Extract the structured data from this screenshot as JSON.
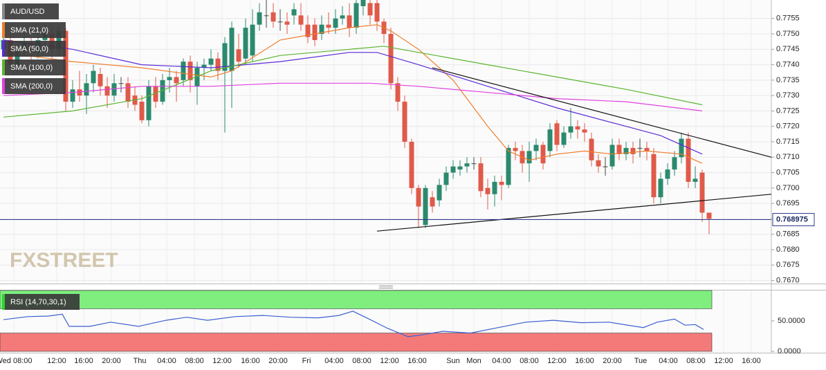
{
  "chart_data": {
    "type": "candlestick",
    "title": "AUD/USD",
    "watermark": "FXSTREET",
    "bull_color": "#2b8a6e",
    "bear_color": "#e05a4a",
    "open": [
      0.7745,
      0.7748,
      0.774,
      0.7745,
      0.7747,
      0.7744,
      0.7748,
      0.775,
      0.7745,
      0.7751,
      0.7728,
      0.7732,
      0.773,
      0.7734,
      0.7737,
      0.7733,
      0.773,
      0.7734,
      0.7734,
      0.773,
      0.7728,
      0.7722,
      0.7733,
      0.7728,
      0.7735,
      0.7736,
      0.7735,
      0.7741,
      0.7733,
      0.7739,
      0.774,
      0.7742,
      0.7738,
      0.7738,
      0.7745,
      0.7742,
      0.7743,
      0.7753,
      0.7756,
      0.7757,
      0.7754,
      0.7754,
      0.7756,
      0.7756,
      0.7753,
      0.7753,
      0.775,
      0.7753,
      0.7752,
      0.7755,
      0.7756,
      0.7752,
      0.7759,
      0.776,
      0.776,
      0.7754,
      0.775,
      0.7734,
      0.7728,
      0.7715,
      0.77,
      0.7688,
      0.7697,
      0.7696,
      0.7701,
      0.7705,
      0.7706,
      0.7707,
      0.7708,
      0.7708,
      0.77,
      0.7698,
      0.7702,
      0.7701,
      0.7713,
      0.7712,
      0.7708,
      0.7712,
      0.7714,
      0.7712,
      0.7721,
      0.7714,
      0.7718,
      0.772,
      0.7719,
      0.7716,
      0.7709,
      0.7707,
      0.7707,
      0.7714,
      0.7711,
      0.7713,
      0.7713,
      0.7713,
      0.7711,
      0.7697,
      0.7703,
      0.7706,
      0.771,
      0.7716,
      0.7702,
      0.7705,
      0.7692
    ],
    "high": [
      0.775,
      0.7751,
      0.7747,
      0.775,
      0.7749,
      0.7751,
      0.7753,
      0.7752,
      0.7753,
      0.7752,
      0.7735,
      0.7738,
      0.7737,
      0.774,
      0.7739,
      0.7736,
      0.7737,
      0.7736,
      0.7736,
      0.7733,
      0.773,
      0.7735,
      0.7736,
      0.7737,
      0.7739,
      0.7738,
      0.7742,
      0.7743,
      0.7741,
      0.7742,
      0.7745,
      0.7744,
      0.7749,
      0.7754,
      0.775,
      0.7755,
      0.7758,
      0.776,
      0.7761,
      0.776,
      0.7758,
      0.7757,
      0.776,
      0.776,
      0.7756,
      0.7755,
      0.7756,
      0.7757,
      0.7758,
      0.7759,
      0.776,
      0.7761,
      0.7761,
      0.7761,
      0.7761,
      0.7755,
      0.7752,
      0.7736,
      0.773,
      0.7716,
      0.7701,
      0.7701,
      0.7699,
      0.7703,
      0.7707,
      0.7709,
      0.7709,
      0.771,
      0.771,
      0.771,
      0.7703,
      0.7704,
      0.7704,
      0.7714,
      0.7715,
      0.7714,
      0.7715,
      0.7716,
      0.7715,
      0.7721,
      0.7722,
      0.772,
      0.7726,
      0.7722,
      0.7721,
      0.7718,
      0.7711,
      0.771,
      0.7716,
      0.7716,
      0.7715,
      0.7715,
      0.7716,
      0.7715,
      0.7713,
      0.7705,
      0.7708,
      0.7712,
      0.7718,
      0.7718,
      0.7707,
      0.7706,
      0.7692
    ],
    "low": [
      0.7743,
      0.7738,
      0.7737,
      0.7743,
      0.7741,
      0.7742,
      0.7746,
      0.7742,
      0.7743,
      0.7725,
      0.7726,
      0.7728,
      0.7724,
      0.7731,
      0.773,
      0.7726,
      0.7728,
      0.7731,
      0.7726,
      0.7725,
      0.7721,
      0.772,
      0.7726,
      0.7727,
      0.7731,
      0.7728,
      0.7733,
      0.7731,
      0.7727,
      0.7735,
      0.7738,
      0.7735,
      0.7718,
      0.7726,
      0.7739,
      0.774,
      0.7741,
      0.7751,
      0.7752,
      0.7752,
      0.7751,
      0.775,
      0.7753,
      0.7751,
      0.7747,
      0.7746,
      0.7748,
      0.775,
      0.775,
      0.7753,
      0.7749,
      0.775,
      0.7756,
      0.7753,
      0.7751,
      0.7747,
      0.7732,
      0.7725,
      0.7713,
      0.7698,
      0.7687,
      0.7687,
      0.7692,
      0.7694,
      0.7699,
      0.7703,
      0.7704,
      0.7705,
      0.7706,
      0.7697,
      0.7693,
      0.7694,
      0.7696,
      0.77,
      0.7709,
      0.7705,
      0.7702,
      0.7709,
      0.7706,
      0.771,
      0.7712,
      0.7713,
      0.7716,
      0.7716,
      0.7715,
      0.7707,
      0.7705,
      0.7704,
      0.7706,
      0.7709,
      0.7709,
      0.7708,
      0.771,
      0.7709,
      0.7695,
      0.7695,
      0.7701,
      0.7704,
      0.7708,
      0.77,
      0.77,
      0.7689,
      0.7685
    ],
    "close": [
      0.7748,
      0.774,
      0.7745,
      0.7747,
      0.7744,
      0.7748,
      0.775,
      0.7745,
      0.7751,
      0.7728,
      0.7732,
      0.773,
      0.7734,
      0.7738,
      0.7733,
      0.773,
      0.7734,
      0.7734,
      0.7728,
      0.7727,
      0.7722,
      0.7733,
      0.7728,
      0.7735,
      0.7736,
      0.7734,
      0.7741,
      0.7735,
      0.7739,
      0.774,
      0.7742,
      0.7738,
      0.7747,
      0.7752,
      0.7741,
      0.7752,
      0.7753,
      0.7757,
      0.7756,
      0.7754,
      0.7754,
      0.7753,
      0.7758,
      0.7753,
      0.7749,
      0.7748,
      0.7753,
      0.7752,
      0.7755,
      0.7756,
      0.7752,
      0.776,
      0.7761,
      0.7756,
      0.7754,
      0.775,
      0.7734,
      0.7728,
      0.7715,
      0.77,
      0.7694,
      0.77,
      0.7694,
      0.7701,
      0.7705,
      0.7707,
      0.7707,
      0.7708,
      0.7708,
      0.7699,
      0.7698,
      0.7702,
      0.7701,
      0.7713,
      0.7712,
      0.7708,
      0.7712,
      0.7714,
      0.7708,
      0.7719,
      0.7714,
      0.7718,
      0.772,
      0.7719,
      0.7718,
      0.7709,
      0.7707,
      0.7707,
      0.7714,
      0.7711,
      0.7713,
      0.7711,
      0.7713,
      0.7712,
      0.7697,
      0.7703,
      0.7706,
      0.771,
      0.7716,
      0.7702,
      0.7703,
      0.7692,
      0.769
    ],
    "series": [
      {
        "name": "SMA (21,0)",
        "color": "#f07c2a",
        "x": [
          0,
          10,
          20,
          30,
          33,
          40,
          45,
          50,
          54,
          56,
          60,
          65,
          70,
          73,
          76,
          80,
          84,
          88,
          93,
          98,
          101
        ],
        "values": [
          0.7744,
          0.7741,
          0.7739,
          0.7736,
          0.7738,
          0.7748,
          0.775,
          0.7752,
          0.7753,
          0.7751,
          0.7745,
          0.7735,
          0.772,
          0.7712,
          0.7709,
          0.7711,
          0.7712,
          0.7711,
          0.7712,
          0.7711,
          0.7708
        ]
      },
      {
        "name": "SMA (50,0)",
        "color": "#5b2bd6",
        "x": [
          0,
          10,
          20,
          30,
          40,
          50,
          54,
          60,
          70,
          80,
          90,
          95,
          101
        ],
        "values": [
          0.7748,
          0.7745,
          0.774,
          0.7739,
          0.7741,
          0.7744,
          0.7744,
          0.774,
          0.7733,
          0.7726,
          0.772,
          0.7717,
          0.7711
        ]
      },
      {
        "name": "SMA (100,0)",
        "color": "#5ab52e",
        "x": [
          0,
          10,
          20,
          30,
          40,
          50,
          55,
          60,
          70,
          80,
          90,
          101
        ],
        "values": [
          0.7723,
          0.7725,
          0.7729,
          0.7738,
          0.7743,
          0.7745,
          0.7746,
          0.7744,
          0.774,
          0.7736,
          0.7732,
          0.7727
        ]
      },
      {
        "name": "SMA (200,0)",
        "color": "#e040e0",
        "x": [
          0,
          10,
          20,
          30,
          40,
          53,
          60,
          70,
          80,
          90,
          101
        ],
        "values": [
          0.773,
          0.7731,
          0.7733,
          0.7733,
          0.7734,
          0.7734,
          0.7733,
          0.7731,
          0.7729,
          0.7728,
          0.7725
        ]
      }
    ],
    "trendlines": [
      {
        "x": [
          62,
          111
        ],
        "values": [
          0.7739,
          0.771
        ]
      },
      {
        "x": [
          54,
          111
        ],
        "values": [
          0.7686,
          0.7698
        ]
      }
    ],
    "last_price": 0.768975,
    "xlim": [
      -0.5,
      111
    ],
    "ylim": [
      0.7669,
      0.7761
    ],
    "yticks": [
      {
        "value": 0.767,
        "label": "0.7670"
      },
      0.7675,
      {
        "value": 0.768,
        "label": "0.7680"
      },
      0.7685,
      {
        "value": 0.769,
        "label": "0.7690"
      },
      0.7695,
      {
        "value": 0.77,
        "label": "0.7700"
      },
      0.7705,
      {
        "value": 0.771,
        "label": "0.7710"
      },
      0.7715,
      {
        "value": 0.772,
        "label": "0.7720"
      },
      0.7725,
      {
        "value": 0.773,
        "label": "0.7730"
      },
      0.7735,
      {
        "value": 0.774,
        "label": "0.7740"
      },
      0.7745,
      {
        "value": 0.775,
        "label": "0.7750"
      },
      0.7755
    ],
    "xticks": [
      {
        "value": 1.5,
        "label": "Wed 08:00"
      },
      {
        "value": 7.7,
        "label": "12:00"
      },
      {
        "value": 11.6,
        "label": "16:00"
      },
      {
        "value": 15.6,
        "label": "20:00"
      },
      {
        "value": 19.7,
        "label": "Thu"
      },
      {
        "value": 23.6,
        "label": "04:00"
      },
      {
        "value": 27.6,
        "label": "08:00"
      },
      {
        "value": 31.6,
        "label": "12:00"
      },
      {
        "value": 35.7,
        "label": "16:00"
      },
      {
        "value": 39.7,
        "label": "20:00"
      },
      {
        "value": 43.8,
        "label": "Fri"
      },
      {
        "value": 47.8,
        "label": "04:00"
      },
      {
        "value": 51.8,
        "label": "08:00"
      },
      {
        "value": 55.8,
        "label": "12:00"
      },
      {
        "value": 59.8,
        "label": "16:00"
      },
      {
        "value": 65,
        "label": "Sun"
      },
      {
        "value": 68,
        "label": "Mon"
      },
      {
        "value": 72,
        "label": "04:00"
      },
      {
        "value": 76,
        "label": "08:00"
      },
      {
        "value": 80,
        "label": "12:00"
      },
      {
        "value": 84,
        "label": "16:00"
      },
      {
        "value": 88,
        "label": "20:00"
      },
      {
        "value": 92.1,
        "label": "Tue"
      },
      {
        "value": 96.1,
        "label": "04:00"
      },
      {
        "value": 100.1,
        "label": "08:00"
      },
      {
        "value": 104.1,
        "label": "12:00"
      },
      {
        "value": 108.1,
        "label": "16:00"
      }
    ],
    "grid": true,
    "indicator": {
      "name": "RSI (14,70,30,1)",
      "color": "#3a5fd0",
      "overbought": 70,
      "oversold": 30,
      "x": [
        0,
        3.5,
        6.5,
        8.5,
        9.5,
        12.5,
        15.5,
        19.5,
        23.5,
        26.5,
        29.5,
        33.5,
        37.5,
        41.5,
        45.5,
        48.5,
        50.5,
        52.5,
        55.5,
        58.5,
        60.5,
        63.5,
        67.5,
        71.5,
        75.5,
        79.5,
        83.5,
        87.5,
        92.5,
        94.5,
        97,
        98.5,
        100,
        101.2
      ],
      "values": [
        52,
        57,
        58,
        61,
        41,
        41,
        48,
        41,
        51,
        56,
        51,
        57,
        59,
        56,
        55,
        59,
        66,
        55,
        38,
        24,
        27,
        33,
        30,
        39,
        48,
        51,
        47,
        48,
        39,
        48,
        53,
        43,
        44,
        36
      ],
      "ylim": [
        0,
        100
      ],
      "yticks": [
        {
          "value": 50,
          "label": "50.0000"
        },
        {
          "value": 0,
          "label": "0.0000"
        }
      ]
    }
  }
}
